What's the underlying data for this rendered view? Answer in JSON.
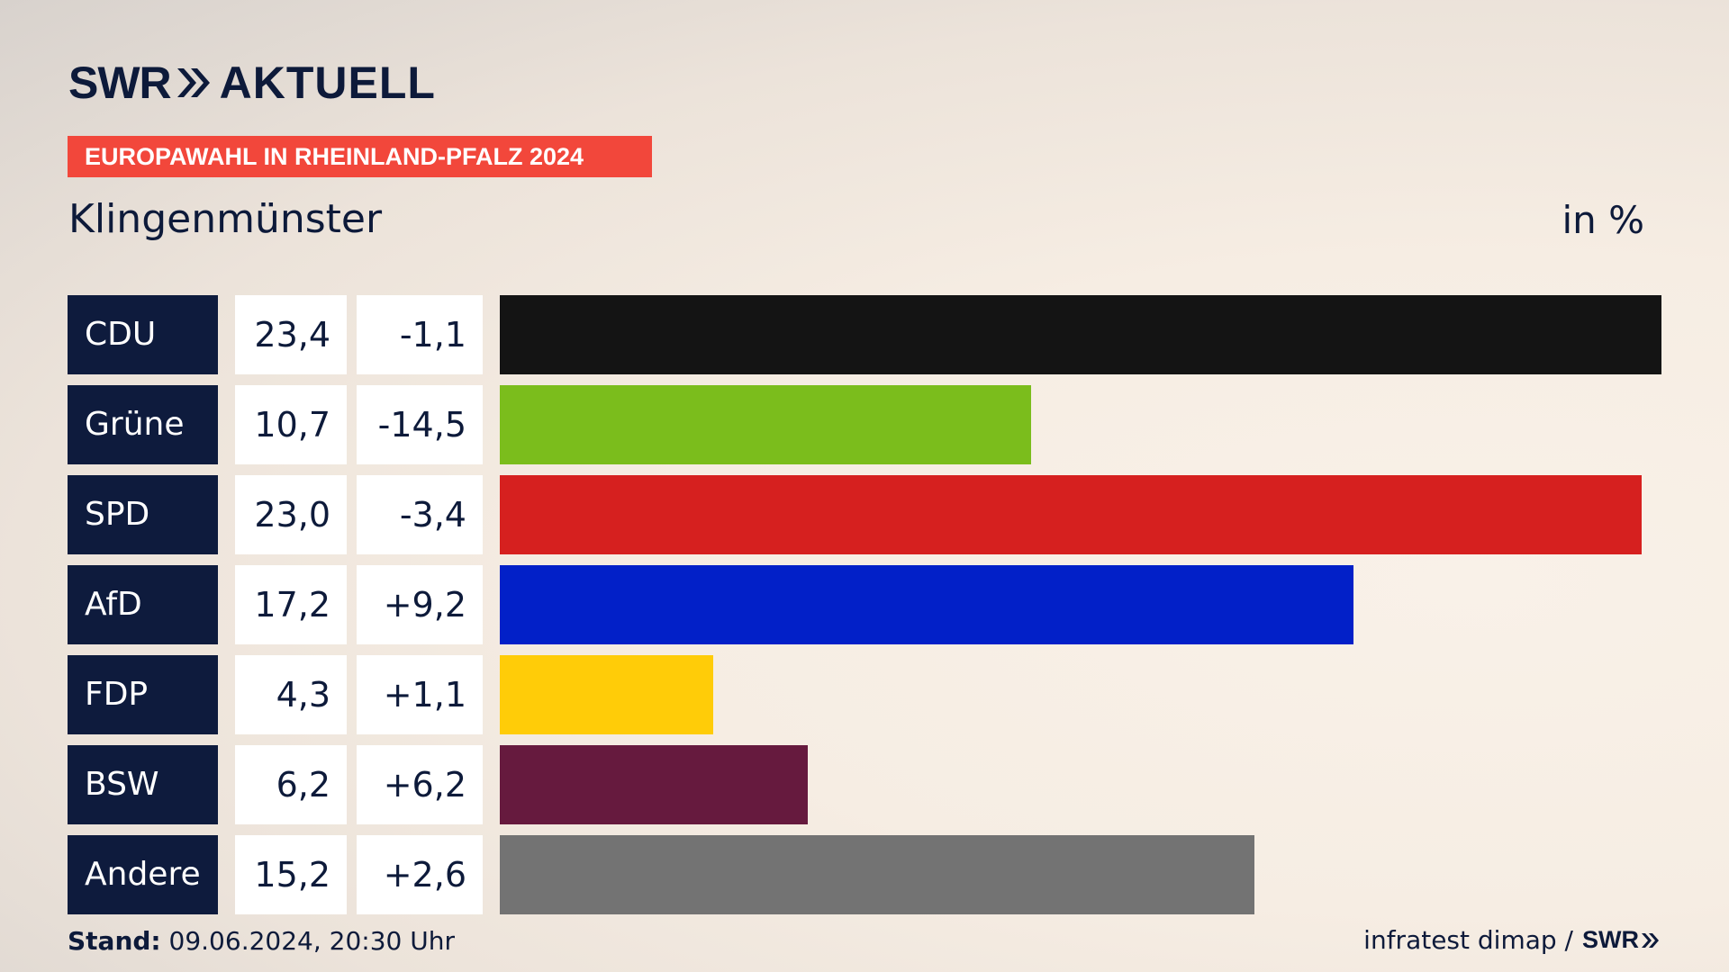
{
  "header": {
    "logo_left": "SWR",
    "logo_right": "AKTUELL",
    "badge": "EUROPAWAHL IN RHEINLAND-PFALZ 2024",
    "place": "Klingenmünster",
    "unit": "in %"
  },
  "colors": {
    "navy": "#0e1b3d",
    "badge": "#f2473b"
  },
  "chart_data": {
    "type": "bar",
    "orientation": "horizontal",
    "title": "Klingenmünster",
    "unit": "in %",
    "categories": [
      "CDU",
      "Grüne",
      "SPD",
      "AfD",
      "FDP",
      "BSW",
      "Andere"
    ],
    "values": [
      23.4,
      10.7,
      23.0,
      17.2,
      4.3,
      6.2,
      15.2
    ],
    "value_labels": [
      "23,4",
      "10,7",
      "23,0",
      "17,2",
      "4,3",
      "6,2",
      "15,2"
    ],
    "diff_labels": [
      "-1,1",
      "-14,5",
      "-3,4",
      "+9,2",
      "+1,1",
      "+6,2",
      "+2,6"
    ],
    "colors": [
      "#141414",
      "#7bbd1c",
      "#d6201f",
      "#0220c8",
      "#ffcc08",
      "#661a3e",
      "#737373"
    ],
    "xlim": [
      0,
      23.4
    ]
  },
  "footer": {
    "stand_label": "Stand:",
    "stand_value": "09.06.2024, 20:30 Uhr",
    "source": "infratest dimap /",
    "source_logo": "SWR"
  }
}
